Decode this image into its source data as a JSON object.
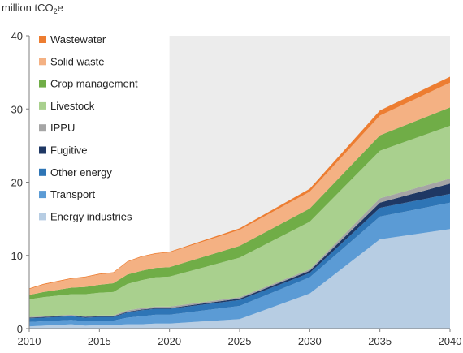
{
  "chart_data": {
    "type": "area",
    "stacked": true,
    "ylabel": "million tCO2e",
    "ylabel_main": "million tCO",
    "ylabel_sub": "2",
    "ylabel_tail": "e",
    "ylim": [
      0,
      40
    ],
    "xlim": [
      2010,
      2040
    ],
    "xticks": [
      2010,
      2015,
      2020,
      2025,
      2030,
      2035,
      2040
    ],
    "yticks": [
      0,
      10,
      20,
      30,
      40
    ],
    "projection_shading_start": 2020,
    "legend_position": "top-left",
    "x": [
      2010,
      2011,
      2012,
      2013,
      2014,
      2015,
      2016,
      2017,
      2018,
      2019,
      2020,
      2025,
      2030,
      2035,
      2040
    ],
    "series": [
      {
        "name": "Energy industries",
        "color": "#b7cde3",
        "values": [
          0.3,
          0.4,
          0.5,
          0.6,
          0.4,
          0.5,
          0.5,
          0.6,
          0.6,
          0.7,
          0.7,
          1.3,
          4.8,
          12.2,
          13.6
        ]
      },
      {
        "name": "Transport",
        "color": "#5b9bd5",
        "values": [
          0.6,
          0.6,
          0.6,
          0.6,
          0.6,
          0.6,
          0.6,
          0.9,
          1.1,
          1.2,
          1.2,
          1.8,
          2.2,
          3.1,
          3.6
        ]
      },
      {
        "name": "Other energy",
        "color": "#2e75b6",
        "values": [
          0.5,
          0.5,
          0.5,
          0.5,
          0.5,
          0.5,
          0.5,
          0.7,
          0.8,
          0.8,
          0.8,
          0.8,
          0.6,
          1.2,
          1.2
        ]
      },
      {
        "name": "Fugitive",
        "color": "#1f3864",
        "values": [
          0.1,
          0.1,
          0.1,
          0.1,
          0.1,
          0.1,
          0.1,
          0.1,
          0.1,
          0.1,
          0.1,
          0.2,
          0.3,
          0.7,
          1.4
        ]
      },
      {
        "name": "IPPU",
        "color": "#a5a5a5",
        "values": [
          0.1,
          0.1,
          0.1,
          0.1,
          0.1,
          0.1,
          0.1,
          0.2,
          0.2,
          0.2,
          0.2,
          0.2,
          0.2,
          0.6,
          0.7
        ]
      },
      {
        "name": "Livestock",
        "color": "#a9d08e",
        "values": [
          2.4,
          2.6,
          2.7,
          2.8,
          3.0,
          3.1,
          3.2,
          3.6,
          3.8,
          4.0,
          4.1,
          5.4,
          6.5,
          6.5,
          7.2
        ]
      },
      {
        "name": "Crop management",
        "color": "#70ad47",
        "values": [
          0.6,
          0.7,
          0.8,
          0.9,
          1.0,
          1.1,
          1.2,
          1.3,
          1.3,
          1.3,
          1.3,
          1.6,
          1.8,
          2.1,
          2.5
        ]
      },
      {
        "name": "Solid waste",
        "color": "#f4b183",
        "values": [
          0.8,
          1.0,
          1.1,
          1.2,
          1.3,
          1.4,
          1.4,
          1.7,
          1.9,
          1.9,
          2.0,
          2.2,
          2.3,
          2.7,
          3.4
        ]
      },
      {
        "name": "Wastewater",
        "color": "#ed7d31",
        "values": [
          0.1,
          0.1,
          0.1,
          0.1,
          0.1,
          0.1,
          0.1,
          0.1,
          0.1,
          0.1,
          0.1,
          0.2,
          0.4,
          0.7,
          0.8
        ]
      }
    ]
  }
}
